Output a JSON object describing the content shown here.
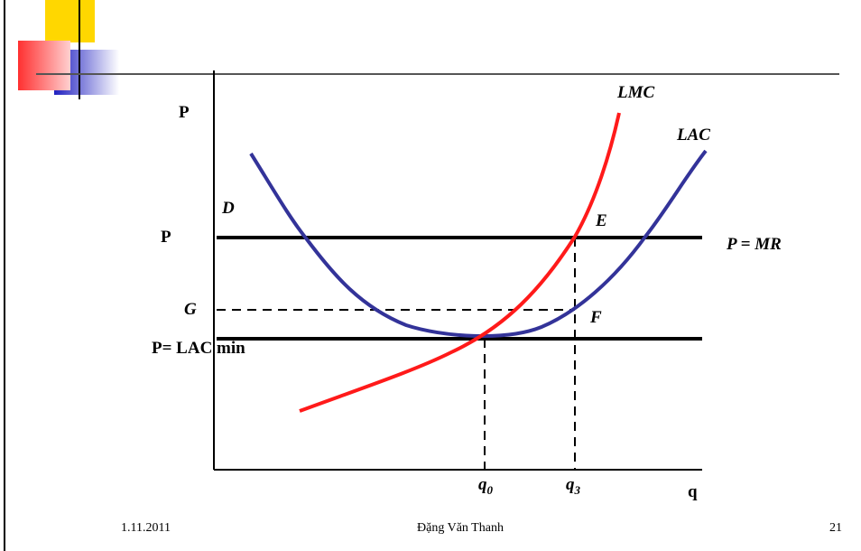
{
  "diagram": {
    "labels": {
      "p_axis": "P",
      "lmc": "LMC",
      "lac": "LAC",
      "d": "D",
      "e": "E",
      "p_price": "P",
      "p_mr": "P = MR",
      "g": "G",
      "f": "F",
      "p_lac_min": "P= LAC min",
      "q0": {
        "base": "q",
        "sub": "0"
      },
      "q3": {
        "base": "q",
        "sub": "3"
      },
      "q_axis": "q"
    }
  },
  "footer": {
    "date": "1.11.2011",
    "author": "Đặng Văn Thanh",
    "page": "21"
  }
}
